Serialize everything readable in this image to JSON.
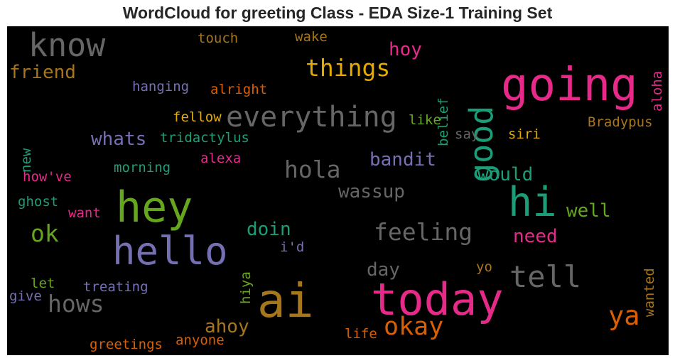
{
  "title": "WordCloud for greeting Class - EDA Size-1 Training Set",
  "colors": {
    "green": "#1b9e77",
    "orange": "#d95f02",
    "purple": "#7570b3",
    "pink": "#e7298a",
    "lime": "#66a61e",
    "gold": "#e6ab02",
    "brown": "#a6761d",
    "gray": "#666666",
    "background": "#000000"
  },
  "words": [
    "know",
    "going",
    "good",
    "things",
    "hoy",
    "touch",
    "wake",
    "friend",
    "hanging",
    "alright",
    "belief",
    "aloha",
    "everything",
    "fellow",
    "like",
    "whats",
    "tridactylus",
    "new",
    "say",
    "siri",
    "Bradypus",
    "hola",
    "bandit",
    "alexa",
    "morning",
    "how've",
    "would",
    "wassup",
    "hey",
    "hi",
    "ghost",
    "want",
    "well",
    "ok",
    "doin",
    "feeling",
    "hello",
    "need",
    "i'd",
    "hiya",
    "wanted",
    "day",
    "tell",
    "yo",
    "let",
    "treating",
    "give",
    "hows",
    "ai",
    "today",
    "ya",
    "ahoy",
    "okay",
    "life",
    "greetings",
    "anyone"
  ]
}
